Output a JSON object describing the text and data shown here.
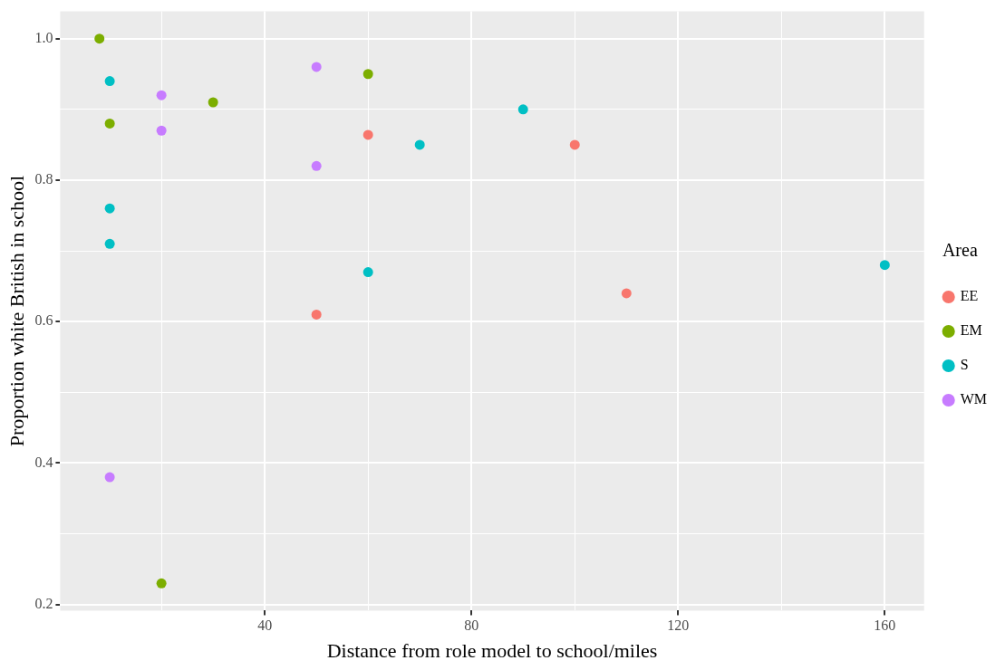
{
  "chart_data": {
    "type": "scatter",
    "xlabel": "Distance from role model to school/miles",
    "ylabel": "Proportion white British in school",
    "legend_title": "Area",
    "legend": "right",
    "grid": true,
    "marker": "circle",
    "xlim": [
      0.4,
      167.6
    ],
    "xticks": [
      {
        "value": 20,
        "label": null
      },
      40,
      {
        "value": 60,
        "label": null
      },
      80,
      {
        "value": 100,
        "label": null
      },
      120,
      {
        "value": 140,
        "label": null
      },
      160
    ],
    "ylim": [
      0.1915,
      1.0385
    ],
    "yticks": [
      {
        "value": 0.2,
        "label": "0.2"
      },
      {
        "value": 0.3,
        "label": null
      },
      {
        "value": 0.4,
        "label": "0.4"
      },
      {
        "value": 0.5,
        "label": null
      },
      {
        "value": 0.6,
        "label": "0.6"
      },
      {
        "value": 0.7,
        "label": null
      },
      {
        "value": 0.8,
        "label": "0.8"
      },
      {
        "value": 0.9,
        "label": null
      },
      {
        "value": 1.0,
        "label": "1.0"
      }
    ],
    "series": [
      {
        "name": "EE",
        "color": "#f8766d",
        "x": [
          60,
          50,
          100,
          110
        ],
        "values": [
          0.864,
          0.61,
          0.85,
          0.64
        ]
      },
      {
        "name": "EM",
        "color": "#7cae00",
        "x": [
          8,
          10,
          30,
          60,
          20
        ],
        "values": [
          1.0,
          0.88,
          0.91,
          0.95,
          0.23
        ]
      },
      {
        "name": "S",
        "color": "#00bfc4",
        "x": [
          10,
          10,
          10,
          60,
          70,
          90,
          160
        ],
        "values": [
          0.94,
          0.76,
          0.71,
          0.67,
          0.85,
          0.9,
          0.68
        ]
      },
      {
        "name": "WM",
        "color": "#c77cff",
        "x": [
          20,
          20,
          50,
          50,
          10
        ],
        "values": [
          0.92,
          0.87,
          0.96,
          0.82,
          0.38
        ]
      }
    ]
  }
}
